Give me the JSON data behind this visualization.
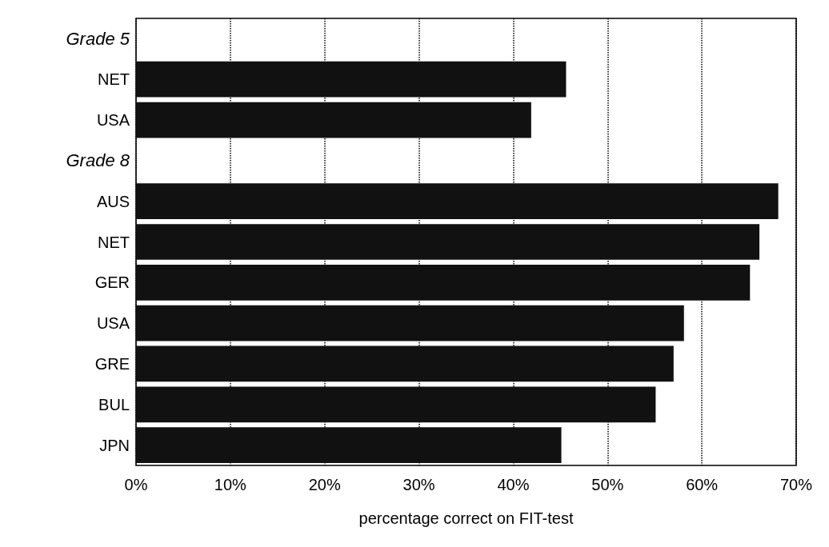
{
  "chart_data": {
    "type": "bar",
    "orientation": "horizontal",
    "categories": [
      "Grade 5",
      "NET",
      "USA",
      "Grade 8",
      "AUS",
      "NET",
      "GER",
      "USA",
      "GRE",
      "BUL",
      "JPN"
    ],
    "values": [
      null,
      45.6,
      41.9,
      null,
      68.1,
      66.1,
      65.1,
      58.1,
      57.0,
      55.1,
      45.1
    ],
    "color": "#111111",
    "xlabel": "percentage correct on FIT-test",
    "xlim": [
      0,
      70
    ],
    "xticks": [
      {
        "value": 0,
        "label": "0%"
      },
      {
        "value": 10,
        "label": "10%"
      },
      {
        "value": 20,
        "label": "20%"
      },
      {
        "value": 30,
        "label": "30%"
      },
      {
        "value": 40,
        "label": "40%"
      },
      {
        "value": 50,
        "label": "50%"
      },
      {
        "value": 60,
        "label": "60%"
      },
      {
        "value": 70,
        "label": "70%"
      }
    ],
    "grid": "x",
    "line_style": "dotted"
  }
}
